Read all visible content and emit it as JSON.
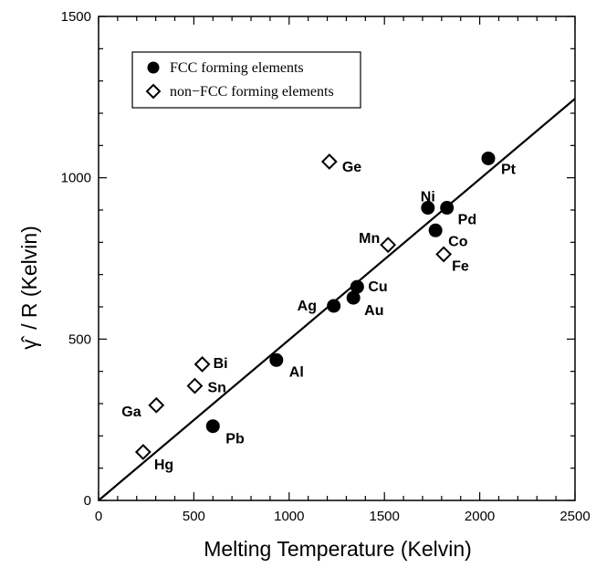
{
  "chart_data": {
    "type": "scatter",
    "xlabel": "Melting Temperature (Kelvin)",
    "ylabel_symbol": "γ̂",
    "ylabel_rest": "/ R  (Kelvin)",
    "xlim": [
      0,
      2500
    ],
    "ylim": [
      0,
      1500
    ],
    "x_ticks": [
      "0",
      "500",
      "1000",
      "1500",
      "2000",
      "2500"
    ],
    "y_ticks": [
      "0",
      "500",
      "1000",
      "1500"
    ],
    "grid": false,
    "legend_position": "top-left",
    "fit_line": {
      "x": [
        0,
        2500
      ],
      "y": [
        0,
        1245
      ]
    },
    "series": [
      {
        "name": "FCC forming elements",
        "marker": "filled-circle",
        "color": "#000000",
        "points": [
          {
            "label": "Pb",
            "x": 600,
            "y": 230
          },
          {
            "label": "Al",
            "x": 933,
            "y": 435
          },
          {
            "label": "Ag",
            "x": 1234,
            "y": 603
          },
          {
            "label": "Au",
            "x": 1337,
            "y": 628
          },
          {
            "label": "Cu",
            "x": 1357,
            "y": 662
          },
          {
            "label": "Ni",
            "x": 1728,
            "y": 907
          },
          {
            "label": "Pd",
            "x": 1828,
            "y": 907
          },
          {
            "label": "Co",
            "x": 1768,
            "y": 837
          },
          {
            "label": "Pt",
            "x": 2045,
            "y": 1060
          }
        ]
      },
      {
        "name": "non−FCC forming elements",
        "marker": "open-diamond",
        "color": "#000000",
        "points": [
          {
            "label": "Hg",
            "x": 234,
            "y": 150
          },
          {
            "label": "Ga",
            "x": 303,
            "y": 295
          },
          {
            "label": "Sn",
            "x": 505,
            "y": 355
          },
          {
            "label": "Bi",
            "x": 544,
            "y": 422
          },
          {
            "label": "Ge",
            "x": 1211,
            "y": 1050
          },
          {
            "label": "Mn",
            "x": 1519,
            "y": 792
          },
          {
            "label": "Fe",
            "x": 1811,
            "y": 763
          }
        ]
      }
    ]
  }
}
